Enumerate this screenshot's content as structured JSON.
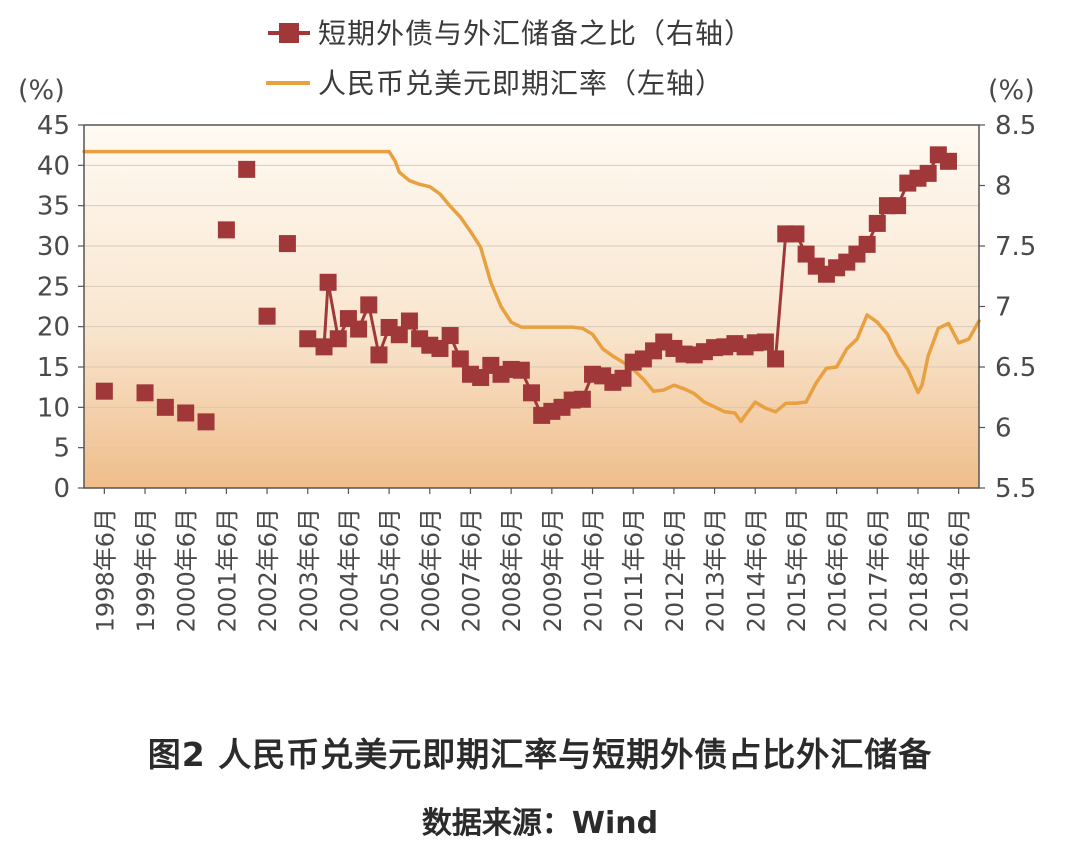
{
  "chart_data": {
    "type": "line",
    "legend_placement": "top-center",
    "legend": {
      "marker_series_label": "短期外债与外汇储备之比（右轴）",
      "line_series_label": "人民币兑美元即期汇率（左轴）"
    },
    "left_axis": {
      "unit": "(%)",
      "ticks": [
        "45",
        "40",
        "35",
        "30",
        "25",
        "20",
        "15",
        "10",
        "5",
        "0"
      ],
      "ylim": [
        0,
        45
      ]
    },
    "right_axis": {
      "unit": "(%)",
      "ticks": [
        "8.5",
        "8",
        "7.5",
        "7",
        "6.5",
        "6",
        "5.5"
      ],
      "ylim": [
        5.5,
        8.5
      ]
    },
    "x_ticks": [
      "1998年6月",
      "1999年6月",
      "2000年6月",
      "2001年6月",
      "2002年6月",
      "2003年6月",
      "2004年6月",
      "2005年6月",
      "2006年6月",
      "2007年6月",
      "2008年6月",
      "2009年6月",
      "2010年6月",
      "2011年6月",
      "2012年6月",
      "2013年6月",
      "2014年6月",
      "2015年6月",
      "2016年6月",
      "2017年6月",
      "2018年6月",
      "2019年6月"
    ],
    "grid": true,
    "series": [
      {
        "name": "短期外债与外汇储备之比（右轴）",
        "color": "#a0383a",
        "marker": "square",
        "points": [
          [
            1998.5,
            12.0
          ],
          [
            1999.5,
            11.8
          ],
          [
            2000.0,
            10.0
          ],
          [
            2000.5,
            9.3
          ],
          [
            2001.0,
            8.2
          ],
          [
            2001.5,
            32.0
          ],
          [
            2002.0,
            39.5
          ],
          [
            2002.5,
            21.3
          ],
          [
            2003.0,
            30.3
          ],
          [
            2003.5,
            18.5
          ],
          [
            2003.9,
            17.5
          ],
          [
            2004.0,
            25.5
          ],
          [
            2004.25,
            18.5
          ],
          [
            2004.5,
            21.0
          ],
          [
            2004.75,
            19.7
          ],
          [
            2005.0,
            22.7
          ],
          [
            2005.25,
            16.5
          ],
          [
            2005.5,
            19.9
          ],
          [
            2005.75,
            19.0
          ],
          [
            2006.0,
            20.7
          ],
          [
            2006.25,
            18.5
          ],
          [
            2006.5,
            17.7
          ],
          [
            2006.75,
            17.3
          ],
          [
            2007.0,
            18.9
          ],
          [
            2007.25,
            16.0
          ],
          [
            2007.5,
            14.1
          ],
          [
            2007.75,
            13.7
          ],
          [
            2008.0,
            15.2
          ],
          [
            2008.25,
            14.1
          ],
          [
            2008.5,
            14.7
          ],
          [
            2008.75,
            14.6
          ],
          [
            2009.0,
            11.8
          ],
          [
            2009.25,
            9.0
          ],
          [
            2009.5,
            9.5
          ],
          [
            2009.75,
            10.0
          ],
          [
            2010.0,
            10.9
          ],
          [
            2010.25,
            11.0
          ],
          [
            2010.5,
            14.1
          ],
          [
            2010.75,
            13.9
          ],
          [
            2011.0,
            13.1
          ],
          [
            2011.25,
            13.6
          ],
          [
            2011.5,
            15.6
          ],
          [
            2011.75,
            16.0
          ],
          [
            2012.0,
            17.0
          ],
          [
            2012.25,
            18.1
          ],
          [
            2012.5,
            17.3
          ],
          [
            2012.75,
            16.6
          ],
          [
            2013.0,
            16.5
          ],
          [
            2013.25,
            16.9
          ],
          [
            2013.5,
            17.4
          ],
          [
            2013.75,
            17.5
          ],
          [
            2014.0,
            17.9
          ],
          [
            2014.25,
            17.5
          ],
          [
            2014.5,
            18.0
          ],
          [
            2014.75,
            18.1
          ],
          [
            2015.0,
            16.0
          ],
          [
            2015.25,
            31.5
          ],
          [
            2015.5,
            31.5
          ],
          [
            2015.75,
            29.0
          ],
          [
            2016.0,
            27.5
          ],
          [
            2016.25,
            26.5
          ],
          [
            2016.5,
            27.3
          ],
          [
            2016.75,
            28.0
          ],
          [
            2017.0,
            29.0
          ],
          [
            2017.25,
            30.2
          ],
          [
            2017.5,
            32.8
          ],
          [
            2017.75,
            35.0
          ],
          [
            2018.0,
            35.0
          ],
          [
            2018.25,
            37.8
          ],
          [
            2018.5,
            38.4
          ],
          [
            2018.75,
            39.0
          ],
          [
            2019.0,
            41.3
          ],
          [
            2019.25,
            40.5
          ]
        ]
      },
      {
        "name": "人民币兑美元即期汇率（左轴）",
        "color": "#e8a040",
        "marker": "none",
        "points": [
          [
            1998.0,
            8.28
          ],
          [
            2005.5,
            8.28
          ],
          [
            2005.65,
            8.2
          ],
          [
            2005.75,
            8.11
          ],
          [
            2006.0,
            8.04
          ],
          [
            2006.25,
            8.01
          ],
          [
            2006.5,
            7.99
          ],
          [
            2006.75,
            7.93
          ],
          [
            2007.0,
            7.83
          ],
          [
            2007.25,
            7.74
          ],
          [
            2007.5,
            7.62
          ],
          [
            2007.75,
            7.49
          ],
          [
            2008.0,
            7.2
          ],
          [
            2008.25,
            7.0
          ],
          [
            2008.5,
            6.87
          ],
          [
            2008.75,
            6.83
          ],
          [
            2009.0,
            6.83
          ],
          [
            2009.5,
            6.83
          ],
          [
            2010.0,
            6.83
          ],
          [
            2010.25,
            6.82
          ],
          [
            2010.5,
            6.77
          ],
          [
            2010.75,
            6.65
          ],
          [
            2011.0,
            6.59
          ],
          [
            2011.25,
            6.54
          ],
          [
            2011.5,
            6.48
          ],
          [
            2011.75,
            6.4
          ],
          [
            2012.0,
            6.3
          ],
          [
            2012.25,
            6.31
          ],
          [
            2012.5,
            6.35
          ],
          [
            2012.75,
            6.32
          ],
          [
            2013.0,
            6.28
          ],
          [
            2013.25,
            6.21
          ],
          [
            2013.5,
            6.17
          ],
          [
            2013.75,
            6.13
          ],
          [
            2014.0,
            6.12
          ],
          [
            2014.15,
            6.05
          ],
          [
            2014.25,
            6.1
          ],
          [
            2014.5,
            6.21
          ],
          [
            2014.75,
            6.16
          ],
          [
            2015.0,
            6.13
          ],
          [
            2015.25,
            6.2
          ],
          [
            2015.5,
            6.2
          ],
          [
            2015.75,
            6.21
          ],
          [
            2016.0,
            6.37
          ],
          [
            2016.25,
            6.49
          ],
          [
            2016.5,
            6.5
          ],
          [
            2016.75,
            6.65
          ],
          [
            2017.0,
            6.73
          ],
          [
            2017.25,
            6.93
          ],
          [
            2017.5,
            6.87
          ],
          [
            2017.75,
            6.77
          ],
          [
            2018.0,
            6.6
          ],
          [
            2018.25,
            6.48
          ],
          [
            2018.5,
            6.29
          ],
          [
            2018.6,
            6.35
          ],
          [
            2018.75,
            6.59
          ],
          [
            2019.0,
            6.82
          ],
          [
            2019.25,
            6.86
          ],
          [
            2019.5,
            6.7
          ],
          [
            2019.75,
            6.73
          ],
          [
            2020.0,
            6.88
          ]
        ]
      }
    ]
  },
  "caption": "图2 人民币兑美元即期汇率与短期外债占比外汇储备",
  "source": "数据来源：Wind"
}
